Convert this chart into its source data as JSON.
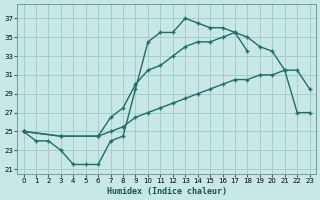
{
  "bg_color": "#c8e8e6",
  "grid_color": "#a8ccca",
  "line_color": "#1e6e6a",
  "xlabel": "Humidex (Indice chaleur)",
  "xlim": [
    -0.5,
    23.5
  ],
  "ylim": [
    20.5,
    38.5
  ],
  "xticks": [
    0,
    1,
    2,
    3,
    4,
    5,
    6,
    7,
    8,
    9,
    10,
    11,
    12,
    13,
    14,
    15,
    16,
    17,
    18,
    19,
    20,
    21,
    22,
    23
  ],
  "yticks": [
    21,
    23,
    25,
    27,
    29,
    31,
    33,
    35,
    37
  ],
  "curve1_x": [
    0,
    1,
    2,
    3,
    4,
    5,
    6,
    7,
    8,
    9,
    10,
    11,
    12,
    13,
    14,
    15,
    16,
    17,
    18
  ],
  "curve1_y": [
    25,
    24,
    24,
    23,
    21.5,
    21.5,
    21.5,
    24,
    24.5,
    29.5,
    34.5,
    35.5,
    35.5,
    37,
    36.5,
    36,
    36,
    35.5,
    33.5
  ],
  "curve2_x": [
    0,
    3,
    6,
    7,
    8,
    9,
    10,
    11,
    12,
    13,
    14,
    15,
    16,
    17,
    18,
    19,
    20,
    21,
    22,
    23
  ],
  "curve2_y": [
    25,
    24.5,
    24.5,
    26.5,
    27.5,
    30,
    31.5,
    32,
    33,
    34,
    34.5,
    34.5,
    35,
    35.5,
    35,
    34,
    33.5,
    31.5,
    31.5,
    29.5
  ],
  "curve3_x": [
    0,
    3,
    6,
    7,
    8,
    9,
    10,
    11,
    12,
    13,
    14,
    15,
    16,
    17,
    18,
    19,
    20,
    21,
    22,
    23
  ],
  "curve3_y": [
    25,
    24.5,
    24.5,
    25,
    25.5,
    26.5,
    27,
    27.5,
    28,
    28.5,
    29,
    29.5,
    30,
    30.5,
    30.5,
    31,
    31,
    31.5,
    27,
    27
  ]
}
